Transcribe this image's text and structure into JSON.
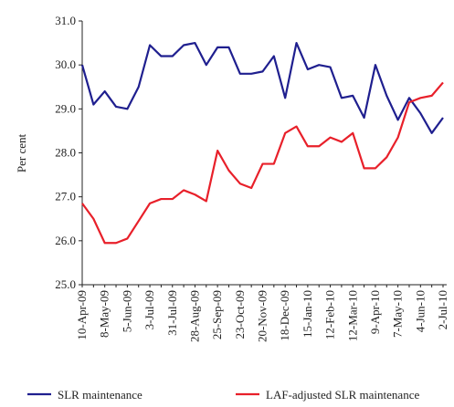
{
  "chart_data": {
    "type": "line",
    "y_label": "Per cent",
    "categories": [
      "10-Apr-09",
      null,
      "8-May-09",
      null,
      "5-Jun-09",
      null,
      "3-Jul-09",
      null,
      "31-Jul-09",
      null,
      "28-Aug-09",
      null,
      "25-Sep-09",
      null,
      "23-Oct-09",
      null,
      "20-Nov-09",
      null,
      "18-Dec-09",
      null,
      "15-Jan-10",
      null,
      "12-Feb-10",
      null,
      "12-Mar-10",
      null,
      "9-Apr-10",
      null,
      "7-May-10",
      null,
      "4-Jun-10",
      null,
      "2-Jul-10"
    ],
    "series": [
      {
        "name": "SLR maintenance",
        "color": "#1f1f8f",
        "values": [
          30.0,
          29.1,
          29.4,
          29.05,
          29.0,
          29.5,
          30.45,
          30.2,
          30.2,
          30.45,
          30.5,
          30.0,
          30.4,
          30.4,
          29.8,
          29.8,
          29.85,
          30.2,
          29.25,
          30.5,
          29.9,
          30.0,
          29.95,
          29.25,
          29.3,
          28.8,
          30.0,
          29.3,
          28.75,
          29.25,
          28.9,
          28.45,
          28.8
        ]
      },
      {
        "name": "LAF-adjusted SLR maintenance",
        "color": "#e8202a",
        "values": [
          26.85,
          26.5,
          25.95,
          25.95,
          26.05,
          26.45,
          26.85,
          26.95,
          26.95,
          27.15,
          27.05,
          26.9,
          28.05,
          27.6,
          27.3,
          27.2,
          27.75,
          27.75,
          28.45,
          28.6,
          28.15,
          28.15,
          28.35,
          28.25,
          28.45,
          27.65,
          27.65,
          27.9,
          28.35,
          29.15,
          29.25,
          29.3,
          29.6
        ]
      }
    ],
    "ylim": [
      25.0,
      31.0
    ],
    "yticks": [
      {
        "value": 25,
        "label": "25.0"
      },
      {
        "value": 26,
        "label": "26.0"
      },
      {
        "value": 27,
        "label": "27.0"
      },
      {
        "value": 28,
        "label": "28.0"
      },
      {
        "value": 29,
        "label": "29.0"
      },
      {
        "value": 30,
        "label": "30.0"
      },
      {
        "value": 31,
        "label": "31.0"
      }
    ]
  }
}
